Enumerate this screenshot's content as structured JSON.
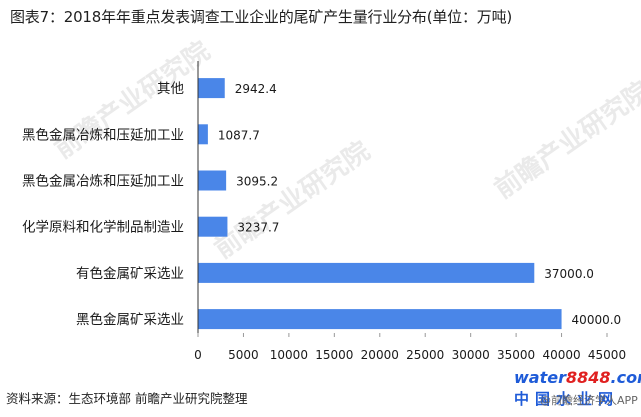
{
  "title": "图表7：2018年年重点发表调查工业企业的尾矿产生量行业分布(单位：万吨)",
  "source": "资料来源：生态环境部 前瞻产业研究院整理",
  "watermark": {
    "text": "前瞻产业研究院",
    "logo_part1": "water",
    "logo_part2": "8848",
    "logo_domain": ".com",
    "logo_bottom": "中国水业网",
    "credit": "@前瞻经济学人APP"
  },
  "colors": {
    "bar": "#4a86e8",
    "axis": "#333333"
  },
  "chart_data": {
    "type": "bar",
    "orientation": "horizontal",
    "categories": [
      "其他",
      "黑色金属冶炼和压延加工业",
      "黑色金属冶炼和压延加工业",
      "化学原料和化学制品制造业",
      "有色金属矿采选业",
      "黑色金属矿采选业"
    ],
    "values": [
      2942.4,
      1087.7,
      3095.2,
      3237.7,
      37000.0,
      40000.0
    ],
    "value_labels": [
      "2942.4",
      "1087.7",
      "3095.2",
      "3237.7",
      "37000.0",
      "40000.0"
    ],
    "xlim": [
      0,
      45000
    ],
    "xticks": [
      0,
      5000,
      10000,
      15000,
      20000,
      25000,
      30000,
      35000,
      40000,
      45000
    ],
    "xtick_labels": [
      "0",
      "5000",
      "10000",
      "15000",
      "20000",
      "25000",
      "30000",
      "35000",
      "40000",
      "45000"
    ],
    "grid": false,
    "legend": "none"
  }
}
